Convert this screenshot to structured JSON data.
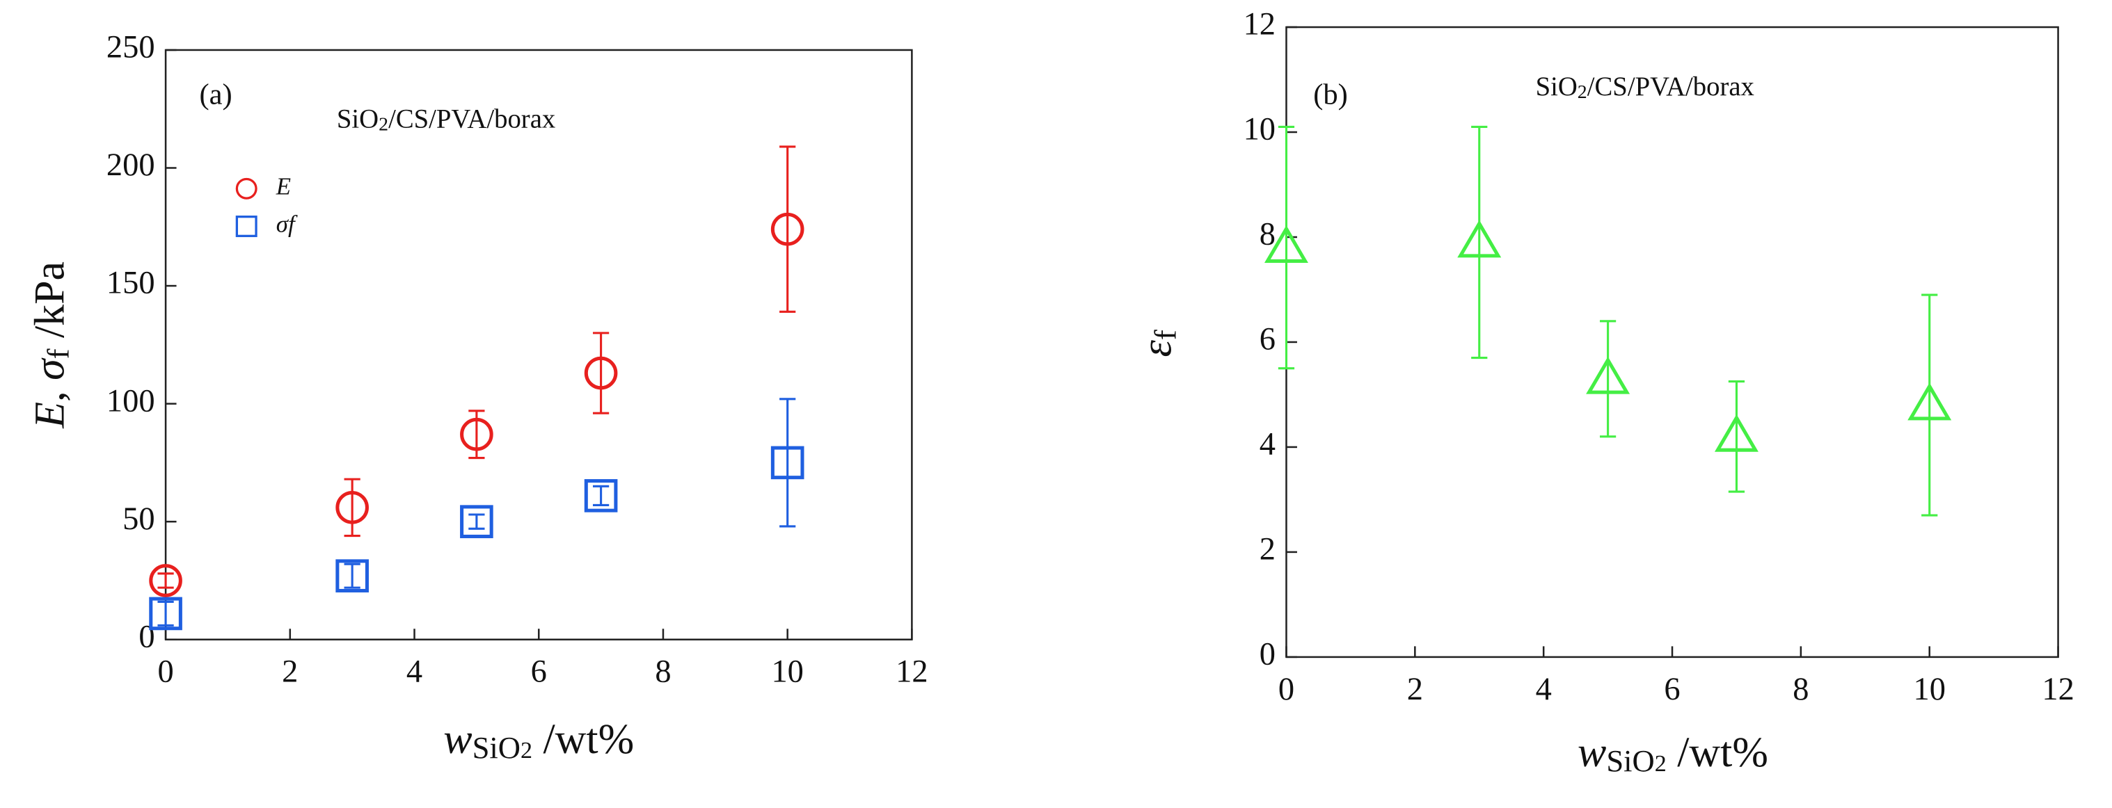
{
  "chart_data": [
    {
      "type": "scatter",
      "panel_label": "(a)",
      "annotation": [
        {
          "text": "SiO",
          "style": "normal"
        },
        {
          "text": "2",
          "style": "sub"
        },
        {
          "text": "/CS/PVA/borax",
          "style": "normal"
        }
      ],
      "x_label": [
        {
          "text": "w",
          "style": "italic"
        },
        {
          "text": "SiO",
          "style": "sub"
        },
        {
          "text": "2",
          "style": "subsub"
        },
        {
          "text": " /wt%",
          "style": "normal"
        }
      ],
      "y_label": [
        {
          "text": "E",
          "style": "italic"
        },
        {
          "text": ", ",
          "style": "normal"
        },
        {
          "text": "σ",
          "style": "italic"
        },
        {
          "text": "f",
          "style": "sub"
        },
        {
          "text": " /kPa",
          "style": "normal"
        }
      ],
      "xlim": [
        0,
        12
      ],
      "xticks": [
        0,
        2,
        4,
        6,
        8,
        10,
        12
      ],
      "ylim": [
        0,
        250
      ],
      "yticks": [
        0,
        50,
        100,
        150,
        200,
        250
      ],
      "legend": "upper left",
      "series": [
        {
          "name": "E",
          "color": "#e8201e",
          "marker": "circle",
          "x": [
            0,
            3,
            5,
            7,
            10
          ],
          "values": [
            25,
            56,
            87,
            113,
            174
          ],
          "errors": [
            3,
            12,
            10,
            17,
            35
          ]
        },
        {
          "name": "σf",
          "color": "#1f5fe0",
          "marker": "square",
          "x": [
            0,
            3,
            5,
            7,
            10
          ],
          "values": [
            11,
            27,
            50,
            61,
            75
          ],
          "errors": [
            5,
            5,
            3,
            4,
            27
          ]
        }
      ]
    },
    {
      "type": "scatter",
      "panel_label": "(b)",
      "annotation": [
        {
          "text": "SiO",
          "style": "normal"
        },
        {
          "text": "2",
          "style": "sub"
        },
        {
          "text": "/CS/PVA/borax",
          "style": "normal"
        }
      ],
      "x_label": [
        {
          "text": "w",
          "style": "italic"
        },
        {
          "text": "SiO",
          "style": "sub"
        },
        {
          "text": "2",
          "style": "subsub"
        },
        {
          "text": " /wt%",
          "style": "normal"
        }
      ],
      "y_label": [
        {
          "text": "ε",
          "style": "italic"
        },
        {
          "text": "f",
          "style": "sub"
        }
      ],
      "xlim": [
        0,
        12
      ],
      "xticks": [
        0,
        2,
        4,
        6,
        8,
        10,
        12
      ],
      "ylim": [
        0,
        12
      ],
      "yticks": [
        0,
        2,
        4,
        6,
        8,
        10,
        12
      ],
      "series": [
        {
          "name": null,
          "color": "#44ee44",
          "marker": "triangle",
          "x": [
            0,
            3,
            5,
            7,
            10
          ],
          "values": [
            7.8,
            7.9,
            5.3,
            4.2,
            4.8
          ],
          "errors": [
            2.3,
            2.2,
            1.1,
            1.05,
            2.1
          ]
        }
      ]
    }
  ]
}
